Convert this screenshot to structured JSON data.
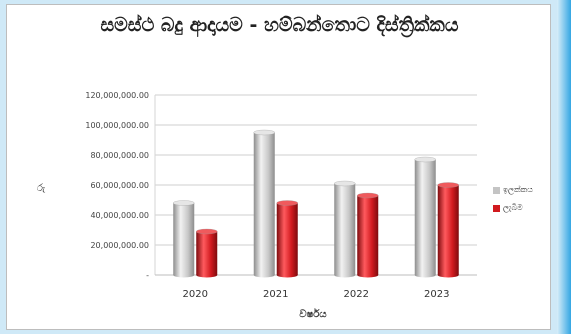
{
  "colors": {
    "series_1": "#c4c4c4",
    "series_2": "#d11a1f",
    "frame_bg": "#ffffff",
    "page_bg": "#cfe9f7"
  },
  "chart_data": {
    "type": "bar",
    "title": "සමස්ථ බදු ආදායම - හම්බන්තොට දිස්ත්‍රික්කය",
    "xlabel": "වර්ෂය",
    "ylabel": "රු",
    "categories": [
      "2020",
      "2021",
      "2022",
      "2023"
    ],
    "series": [
      {
        "name": "ඉලක්කය",
        "values": [
          48000000,
          95000000,
          61000000,
          77000000
        ]
      },
      {
        "name": "ලැබීම",
        "values": [
          29000000,
          48000000,
          53000000,
          60000000
        ]
      }
    ],
    "ylim": [
      0,
      120000000
    ],
    "yticks": [
      0,
      20000000,
      40000000,
      60000000,
      80000000,
      100000000,
      120000000
    ],
    "ytick_labels": [
      "-",
      "20,000,000.00",
      "40,000,000.00",
      "60,000,000.00",
      "80,000,000.00",
      "100,000,000.00",
      "120,000,000.00"
    ],
    "grid": true,
    "legend_position": "right",
    "bar_style": "3d-cylinder"
  }
}
